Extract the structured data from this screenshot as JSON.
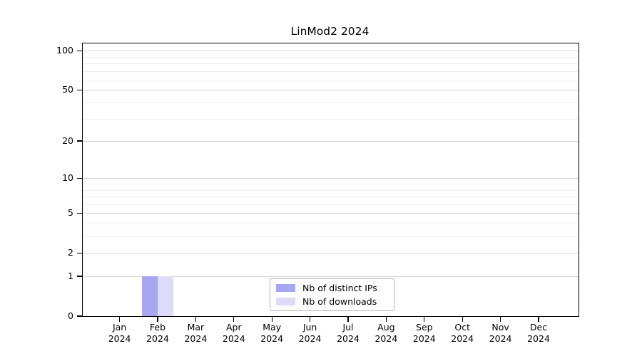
{
  "title": "LinMod2 2024",
  "chart_data": {
    "type": "bar",
    "title": "LinMod2 2024",
    "categories": [
      "Jan",
      "Feb",
      "Mar",
      "Apr",
      "May",
      "Jun",
      "Jul",
      "Aug",
      "Sep",
      "Oct",
      "Nov",
      "Dec"
    ],
    "x_year": "2024",
    "series": [
      {
        "name": "Nb of distinct IPs",
        "color": "#a6a6f1",
        "values": [
          0,
          1,
          0,
          0,
          0,
          0,
          0,
          0,
          0,
          0,
          0,
          0
        ]
      },
      {
        "name": "Nb of downloads",
        "color": "#dcdcf8",
        "values": [
          0,
          1,
          0,
          0,
          0,
          0,
          0,
          0,
          0,
          0,
          0,
          0
        ]
      }
    ],
    "y_axis": {
      "scale": "log10(value+1)",
      "major_ticks": [
        0,
        1,
        2,
        5,
        10,
        20,
        50,
        100
      ],
      "minor_gridlines": [
        3,
        4,
        6,
        7,
        8,
        9,
        30,
        40,
        60,
        70,
        80,
        90
      ],
      "ylim": [
        0,
        115
      ]
    },
    "xlabel": "",
    "ylabel": "",
    "grid": true,
    "legend_position": "bottom-center-inside"
  },
  "colors": {
    "background": "#ffffff",
    "axis": "#000000",
    "major_grid": "#d2d2d2",
    "minor_grid": "#eeeeee",
    "legend_border": "#b3b3b3",
    "text": "#000000"
  }
}
